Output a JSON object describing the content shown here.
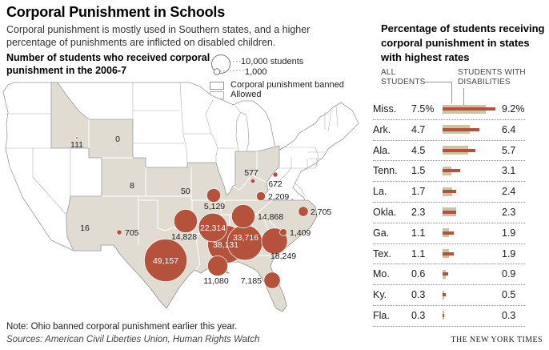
{
  "title": "Corporal Punishment in Schools",
  "subtitle": "Corporal punishment is mostly used in Southern states, and a higher percentage of punishments are inflicted on disabled children.",
  "note": "Note: Ohio banned corporal punishment earlier this year.",
  "sources": "Sources: American Civil Liberties Union, Human Rights Watch",
  "credit": "THE NEW YORK TIMES",
  "colors": {
    "bubble_red": "#b5523c",
    "map_allowed_tan": "#e0dcd1",
    "bar_tan": "#cfc1a3",
    "bar_red": "#b5523c"
  },
  "map_legend": {
    "size_big": "10,000 students",
    "size_small": "1,000",
    "banned": "Corporal punishment banned",
    "allowed": "Allowed"
  },
  "chart_data": [
    {
      "type": "scatter",
      "subtype": "bubble-map",
      "title": "Number of students who received corporal punishment in the 2006-7",
      "legend": [
        "10,000 students",
        "1,000",
        "Corporal punishment banned",
        "Allowed"
      ],
      "points": [
        {
          "id": "TX",
          "state": "Texas",
          "value": 49157,
          "label": "49,157"
        },
        {
          "id": "MS",
          "state": "Mississippi",
          "value": 38131,
          "label": "38,131"
        },
        {
          "id": "AL",
          "state": "Alabama",
          "value": 33716,
          "label": "33,716"
        },
        {
          "id": "AR",
          "state": "Arkansas",
          "value": 22314,
          "label": "22,314"
        },
        {
          "id": "GA",
          "state": "Georgia",
          "value": 18249,
          "label": "18,249"
        },
        {
          "id": "TN",
          "state": "Tennessee",
          "value": 14868,
          "label": "14,868"
        },
        {
          "id": "OK",
          "state": "Oklahoma",
          "value": 14828,
          "label": "14,828"
        },
        {
          "id": "LA",
          "state": "Louisiana",
          "value": 11080,
          "label": "11,080"
        },
        {
          "id": "FL",
          "state": "Florida",
          "value": 7185,
          "label": "7,185"
        },
        {
          "id": "MO",
          "state": "Missouri",
          "value": 5129,
          "label": "5,129"
        },
        {
          "id": "NC",
          "state": "North Carolina",
          "value": 2705,
          "label": "2,705"
        },
        {
          "id": "KY",
          "state": "Kentucky",
          "value": 2209,
          "label": "2,209"
        },
        {
          "id": "SC",
          "state": "South Carolina",
          "value": 1409,
          "label": "1,409"
        },
        {
          "id": "NM",
          "state": "New Mexico",
          "value": 705,
          "label": "705"
        },
        {
          "id": "OH",
          "state": "Ohio",
          "value": 672,
          "label": "672"
        },
        {
          "id": "IN",
          "state": "Indiana",
          "value": 577,
          "label": "577"
        },
        {
          "id": "ID",
          "state": "Idaho",
          "value": 111,
          "label": "111"
        },
        {
          "id": "KS",
          "state": "Kansas",
          "value": 50,
          "label": "50"
        },
        {
          "id": "AZ",
          "state": "Arizona",
          "value": 16,
          "label": "16"
        },
        {
          "id": "CO",
          "state": "Colorado",
          "value": 8,
          "label": "8"
        },
        {
          "id": "WY",
          "state": "Wyoming",
          "value": 0,
          "label": "0"
        }
      ],
      "size_scale": "circle area proportional to students; 10,000 students = 12px radius"
    },
    {
      "type": "bar",
      "orientation": "horizontal",
      "title": "Percentage of students receiving corporal punishment in states with highest rates",
      "unit": "%",
      "series_names": [
        "ALL STUDENTS",
        "STUDENTS WITH DISABILITIES"
      ],
      "categories": [
        "Miss.",
        "Ark.",
        "Ala.",
        "Tenn.",
        "La.",
        "Okla.",
        "Ga.",
        "Tex.",
        "Mo.",
        "Ky.",
        "Fla."
      ],
      "rows": [
        {
          "state": "Miss.",
          "all": 7.5,
          "all_label": "7.5%",
          "disabilities": 9.2,
          "disabilities_label": "9.2%"
        },
        {
          "state": "Ark.",
          "all": 4.7,
          "all_label": "4.7",
          "disabilities": 6.4,
          "disabilities_label": "6.4"
        },
        {
          "state": "Ala.",
          "all": 4.5,
          "all_label": "4.5",
          "disabilities": 5.7,
          "disabilities_label": "5.7"
        },
        {
          "state": "Tenn.",
          "all": 1.5,
          "all_label": "1.5",
          "disabilities": 3.1,
          "disabilities_label": "3.1"
        },
        {
          "state": "La.",
          "all": 1.7,
          "all_label": "1.7",
          "disabilities": 2.4,
          "disabilities_label": "2.4"
        },
        {
          "state": "Okla.",
          "all": 2.3,
          "all_label": "2.3",
          "disabilities": 2.3,
          "disabilities_label": "2.3"
        },
        {
          "state": "Ga.",
          "all": 1.1,
          "all_label": "1.1",
          "disabilities": 1.9,
          "disabilities_label": "1.9"
        },
        {
          "state": "Tex.",
          "all": 1.1,
          "all_label": "1.1",
          "disabilities": 1.9,
          "disabilities_label": "1.9"
        },
        {
          "state": "Mo.",
          "all": 0.6,
          "all_label": "0.6",
          "disabilities": 0.9,
          "disabilities_label": "0.9"
        },
        {
          "state": "Ky.",
          "all": 0.3,
          "all_label": "0.3",
          "disabilities": 0.5,
          "disabilities_label": "0.5"
        },
        {
          "state": "Fla.",
          "all": 0.3,
          "all_label": "0.3",
          "disabilities": 0.3,
          "disabilities_label": "0.3"
        }
      ]
    }
  ],
  "map_section": {
    "heading": "Number of students who received corporal punishment in the 2006-7"
  },
  "panel": {
    "heading": "Percentage of students receiving corporal punishment in states with highest rates",
    "group_all": "ALL STUDENTS",
    "group_disabilities": "STUDENTS WITH DISABILITIES"
  }
}
